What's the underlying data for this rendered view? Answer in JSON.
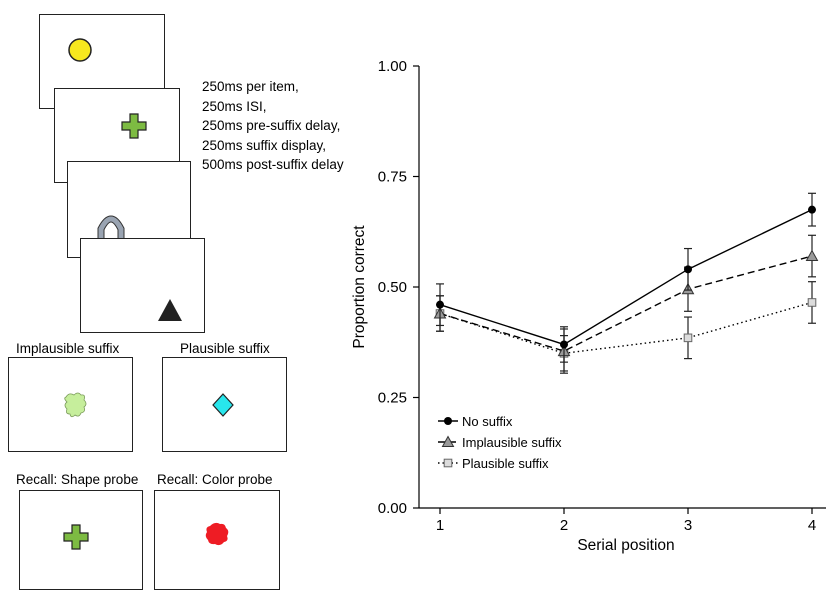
{
  "timing": {
    "lines": [
      "250ms per item,",
      "250ms ISI,",
      "250ms pre-suffix delay,",
      "250ms suffix display,",
      "500ms post-suffix delay"
    ]
  },
  "panels": {
    "implausible_label": "Implausible suffix",
    "plausible_label": "Plausible suffix",
    "shape_probe_label": "Recall: Shape probe",
    "color_probe_label": "Recall: Color probe"
  },
  "colors": {
    "yellow": "#f7e81e",
    "green": "#7dbb42",
    "gray_arch": "#9aa4b2",
    "black": "#222222",
    "pale_green": "#c6ee9c",
    "cyan": "#28e6ec",
    "red": "#ee1c24"
  },
  "chart_data": {
    "type": "line",
    "xlabel": "Serial position",
    "ylabel": "Proportion correct",
    "x": [
      1,
      2,
      3,
      4
    ],
    "xticks": [
      "1",
      "2",
      "3",
      "4"
    ],
    "yticks": [
      "0.00",
      "0.25",
      "0.50",
      "0.75",
      "1.00"
    ],
    "ylim": [
      0,
      1
    ],
    "grid": false,
    "legend_position": "bottom-left",
    "series": [
      {
        "name": "No suffix",
        "values": [
          0.46,
          0.37,
          0.54,
          0.675
        ],
        "errors": [
          0.047,
          0.04,
          0.047,
          0.037
        ],
        "marker": "circle",
        "dash": "solid",
        "color": "#000000"
      },
      {
        "name": "Implausible suffix",
        "values": [
          0.44,
          0.355,
          0.495,
          0.57
        ],
        "errors": [
          0.04,
          0.05,
          0.05,
          0.047
        ],
        "marker": "triangle",
        "dash": "dashed",
        "color": "#555555"
      },
      {
        "name": "Plausible suffix",
        "values": [
          0.44,
          0.35,
          0.385,
          0.465
        ],
        "errors": [
          0.04,
          0.04,
          0.047,
          0.047
        ],
        "marker": "square",
        "dash": "dotted",
        "color": "#555555"
      }
    ]
  }
}
